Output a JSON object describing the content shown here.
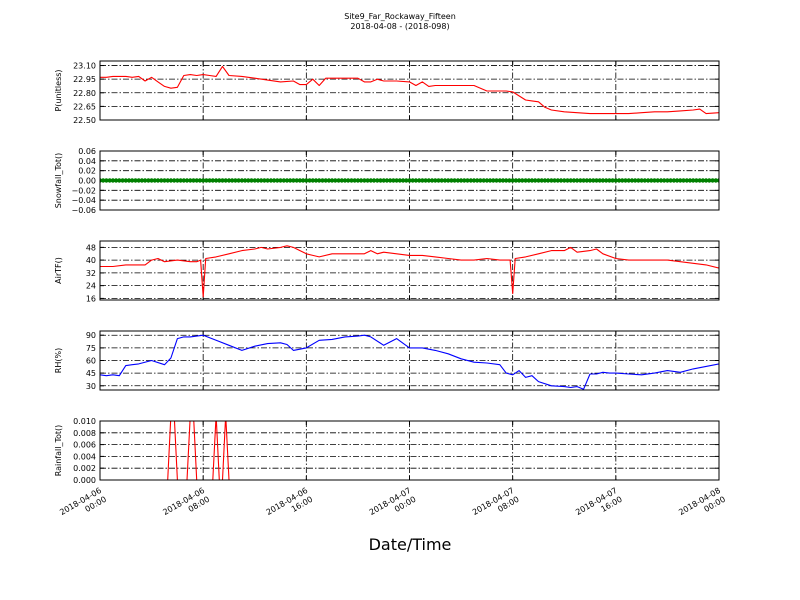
{
  "title_lines": [
    "Site9_Far_Rockaway_Fifteen",
    "2018-04-08 - (2018-098)"
  ],
  "chart_data": [
    {
      "type": "line",
      "name": "pressure",
      "ylabel": "P(unitless)",
      "ylim": [
        22.5,
        23.15
      ],
      "yticks": [
        "22.50",
        "22.65",
        "22.80",
        "22.95",
        "23.10"
      ],
      "ytick_values": [
        22.5,
        22.65,
        22.8,
        22.95,
        23.1
      ],
      "color": "#ff0000",
      "x": [
        0,
        0.5,
        1,
        2,
        2.5,
        3,
        3.5,
        4,
        4.5,
        5,
        5.5,
        6,
        6.5,
        7,
        7.5,
        8,
        8.5,
        9,
        9.5,
        10,
        11,
        12,
        13,
        14,
        15,
        15.5,
        16,
        16.5,
        17,
        17.5,
        18,
        18.5,
        19,
        20,
        20.5,
        21,
        21.5,
        22,
        23,
        24,
        24.5,
        25,
        25.5,
        26,
        27,
        28,
        29,
        30,
        31,
        31.5,
        32,
        33,
        33.5,
        34,
        34.5,
        35,
        36,
        37,
        38,
        39,
        40,
        41,
        42,
        43,
        44,
        45,
        46,
        46.5,
        47,
        48
      ],
      "y": [
        22.97,
        22.97,
        22.98,
        22.98,
        22.97,
        22.98,
        22.93,
        22.97,
        22.92,
        22.87,
        22.85,
        22.86,
        22.99,
        23.0,
        22.99,
        23.0,
        22.99,
        22.98,
        23.09,
        22.99,
        22.98,
        22.96,
        22.94,
        22.92,
        22.93,
        22.89,
        22.89,
        22.95,
        22.88,
        22.96,
        22.96,
        22.96,
        22.96,
        22.96,
        22.92,
        22.92,
        22.95,
        22.93,
        22.93,
        22.92,
        22.88,
        22.92,
        22.87,
        22.88,
        22.88,
        22.88,
        22.88,
        22.82,
        22.82,
        22.82,
        22.81,
        22.72,
        22.71,
        22.7,
        22.64,
        22.61,
        22.59,
        22.58,
        22.57,
        22.57,
        22.57,
        22.57,
        22.58,
        22.59,
        22.59,
        22.6,
        22.61,
        22.62,
        22.57,
        22.58
      ],
      "yrange_note": ""
    },
    {
      "type": "scatter",
      "name": "snowfall",
      "ylabel": "Snowfall_Tot()",
      "ylim": [
        -0.06,
        0.06
      ],
      "yticks": [
        "−0.06",
        "−0.04",
        "−0.02",
        "0.00",
        "0.02",
        "0.04",
        "0.06"
      ],
      "ytick_values": [
        -0.06,
        -0.04,
        -0.02,
        0,
        0.02,
        0.04,
        0.06
      ],
      "color": "#008000",
      "x_start": 0,
      "x_end": 48,
      "x_step": 0.25,
      "value": 0
    },
    {
      "type": "line",
      "name": "airtemp",
      "ylabel": "AirTF()",
      "ylim": [
        15,
        52
      ],
      "yticks": [
        "16",
        "24",
        "32",
        "40",
        "48"
      ],
      "ytick_values": [
        16,
        24,
        32,
        40,
        48
      ],
      "color": "#ff0000",
      "x": [
        0,
        1,
        2,
        3,
        3.5,
        4,
        4.5,
        5,
        6,
        7,
        7.5,
        7.8,
        8,
        8.2,
        9,
        10,
        11,
        12,
        12.5,
        13,
        14,
        14.5,
        15,
        16,
        16.5,
        17,
        18,
        19,
        20,
        20.5,
        21,
        21.5,
        22,
        23,
        24,
        25,
        26,
        27,
        28,
        29,
        30,
        31,
        31.5,
        31.8,
        32,
        32.2,
        33,
        34,
        35,
        36,
        36.5,
        37,
        38,
        38.5,
        39,
        40,
        41,
        42,
        43,
        44,
        45,
        46,
        47,
        48
      ],
      "y": [
        36,
        36,
        37,
        37,
        37,
        40,
        41,
        39,
        40,
        39,
        39,
        40,
        17,
        41,
        42,
        44,
        46,
        47,
        48,
        47,
        48,
        49,
        48,
        44,
        43,
        42,
        44,
        44,
        44,
        44,
        46,
        44,
        45,
        44,
        43,
        43,
        42,
        41,
        40,
        40,
        41,
        40,
        40,
        40,
        19,
        41,
        42,
        44,
        46,
        46,
        48,
        45,
        46,
        47,
        44,
        41,
        40,
        40,
        40,
        40,
        39,
        38,
        37,
        35
      ],
      "yrange_note": ""
    },
    {
      "type": "line",
      "name": "rh",
      "ylabel": "RH(%)",
      "ylim": [
        25,
        95
      ],
      "yticks": [
        "30",
        "45",
        "60",
        "75",
        "90"
      ],
      "ytick_values": [
        30,
        45,
        60,
        75,
        90
      ],
      "color": "#0000ff",
      "x": [
        0,
        0.5,
        1,
        1.5,
        2,
        2.5,
        3,
        4,
        5,
        5.5,
        6,
        6.5,
        7,
        8,
        9,
        10,
        11,
        12,
        13,
        14,
        14.5,
        15,
        16,
        17,
        18,
        19,
        20,
        20.5,
        21,
        22,
        23,
        24,
        25,
        26,
        27,
        28,
        29,
        30,
        31,
        31.5,
        32,
        32.5,
        33,
        33.5,
        34,
        35,
        36,
        36.5,
        37,
        37.5,
        38,
        38.5,
        39,
        39.5,
        40,
        41,
        42,
        43,
        44,
        45,
        46,
        47,
        48
      ],
      "y": [
        43,
        42,
        43,
        42,
        54,
        55,
        56,
        60,
        55,
        63,
        86,
        88,
        88,
        90,
        84,
        78,
        72,
        77,
        80,
        81,
        79,
        72,
        75,
        84,
        85,
        88,
        89,
        90,
        88,
        78,
        86,
        75,
        75,
        72,
        68,
        62,
        58,
        57,
        55,
        45,
        43,
        48,
        40,
        42,
        35,
        30,
        29,
        28,
        29,
        26,
        44,
        44,
        46,
        45,
        45,
        44,
        43,
        45,
        48,
        46,
        50,
        53,
        56
      ],
      "yrange_note": ""
    },
    {
      "type": "line",
      "name": "rainfall",
      "ylabel": "Rainfall_Tot()",
      "ylim": [
        0,
        0.01
      ],
      "yticks": [
        "0.000",
        "0.002",
        "0.004",
        "0.006",
        "0.008",
        "0.010"
      ],
      "ytick_values": [
        0,
        0.002,
        0.004,
        0.006,
        0.008,
        0.01
      ],
      "color": "#ff0000",
      "x": [
        0,
        5.25,
        5.5,
        5.75,
        6,
        6.75,
        7,
        7.25,
        7.5,
        8.75,
        9,
        9.25,
        9.5,
        9.75,
        10,
        48
      ],
      "y": [
        0,
        0,
        0.011,
        0.011,
        0,
        0,
        0.011,
        0.011,
        0,
        0,
        0.011,
        0,
        0,
        0.011,
        0,
        0
      ],
      "yrange_note": ""
    }
  ],
  "x_axis": {
    "xlim": [
      0,
      48
    ],
    "tick_values": [
      0,
      8,
      16,
      24,
      32,
      40,
      48
    ],
    "tick_labels": [
      [
        "2018-04-06",
        "00:00"
      ],
      [
        "2018-04-06",
        "08:00"
      ],
      [
        "2018-04-06",
        "16:00"
      ],
      [
        "2018-04-07",
        "00:00"
      ],
      [
        "2018-04-07",
        "08:00"
      ],
      [
        "2018-04-07",
        "16:00"
      ],
      [
        "2018-04-08",
        "00:00"
      ]
    ],
    "xlabel": "Date/Time"
  }
}
